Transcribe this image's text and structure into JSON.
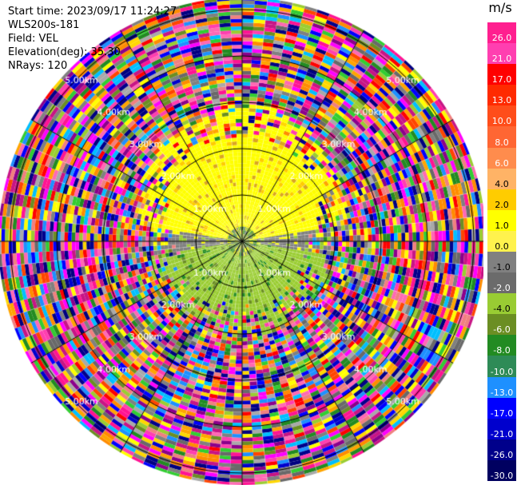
{
  "header": {
    "start_time": "Start time: 2023/09/17 11:24:27",
    "instrument": "WLS200s-181",
    "field": "Field: VEL",
    "elevation": "Elevation(deg): 35.30",
    "nrays": "NRays: 120"
  },
  "colorbar": {
    "unit": "m/s",
    "ticks": [
      "26.0",
      "21.0",
      "17.0",
      "13.0",
      "10.0",
      "8.0",
      "6.0",
      "4.0",
      "2.0",
      "1.0",
      "0.0",
      "-1.0",
      "-2.0",
      "-4.0",
      "-6.0",
      "-8.0",
      "-10.0",
      "-13.0",
      "-17.0",
      "-21.0",
      "-26.0",
      "-30.0"
    ],
    "colors": [
      "#ff1f8f",
      "#ff3fb0",
      "#ff0000",
      "#ff2a00",
      "#ff4d1a",
      "#ff6633",
      "#ff8c4d",
      "#ffb366",
      "#ffcc00",
      "#ffff00",
      "#fff24d",
      "#808080",
      "#6b6b6b",
      "#99cc33",
      "#6b8e23",
      "#228b22",
      "#2e8b57",
      "#1e90ff",
      "#0000ff",
      "#0000cd",
      "#00008b",
      "#000060"
    ]
  },
  "range_labels": [
    "1.00km",
    "2.00km",
    "3.00km",
    "4.00km",
    "5.00km"
  ],
  "ppi": {
    "nrays": 120,
    "rings_km": [
      1,
      2,
      3,
      4,
      5
    ],
    "max_range_km": 5.6
  }
}
